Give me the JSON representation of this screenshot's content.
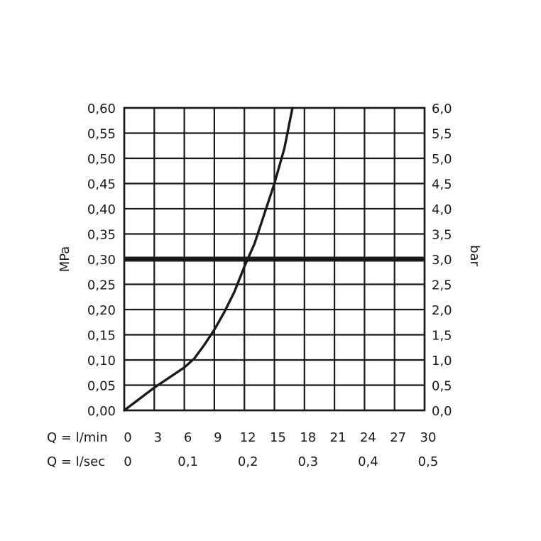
{
  "chart_data": {
    "type": "line",
    "ylabel_left": "MPa",
    "ylabel_right": "bar",
    "x_row1_label": "Q = l/min",
    "x_row2_label": "Q = l/sec",
    "xlim": [
      0,
      30
    ],
    "ylim": [
      0,
      0.6
    ],
    "ylim_right": [
      0,
      6
    ],
    "grid": true,
    "x_ticks_lmin": [
      "0",
      "3",
      "6",
      "9",
      "12",
      "15",
      "18",
      "21",
      "24",
      "27",
      "30"
    ],
    "x_ticks_lsec": [
      {
        "value": 0,
        "label": "0"
      },
      {
        "value": 6,
        "label": "0,1"
      },
      {
        "value": 12,
        "label": "0,2"
      },
      {
        "value": 18,
        "label": "0,3"
      },
      {
        "value": 24,
        "label": "0,4"
      },
      {
        "value": 30,
        "label": "0,5"
      }
    ],
    "y_ticks_left": [
      "0,00",
      "0,05",
      "0,10",
      "0,15",
      "0,20",
      "0,25",
      "0,30",
      "0,35",
      "0,40",
      "0,45",
      "0,50",
      "0,55",
      "0,60"
    ],
    "y_ticks_right": [
      "0,0",
      "0,5",
      "1,0",
      "1,5",
      "2,0",
      "2,5",
      "3,0",
      "3,5",
      "4,0",
      "4,5",
      "5,0",
      "5,5",
      "6,0"
    ],
    "series": [
      {
        "x": [
          0,
          3,
          6,
          7,
          8,
          9,
          10,
          11,
          12,
          13,
          14,
          15,
          16,
          16.8
        ],
        "y": [
          0,
          0.045,
          0.085,
          0.103,
          0.13,
          0.16,
          0.195,
          0.235,
          0.285,
          0.33,
          0.39,
          0.45,
          0.52,
          0.6
        ]
      }
    ],
    "reference_line_y": 0.3,
    "reference_drop_x": 12
  }
}
